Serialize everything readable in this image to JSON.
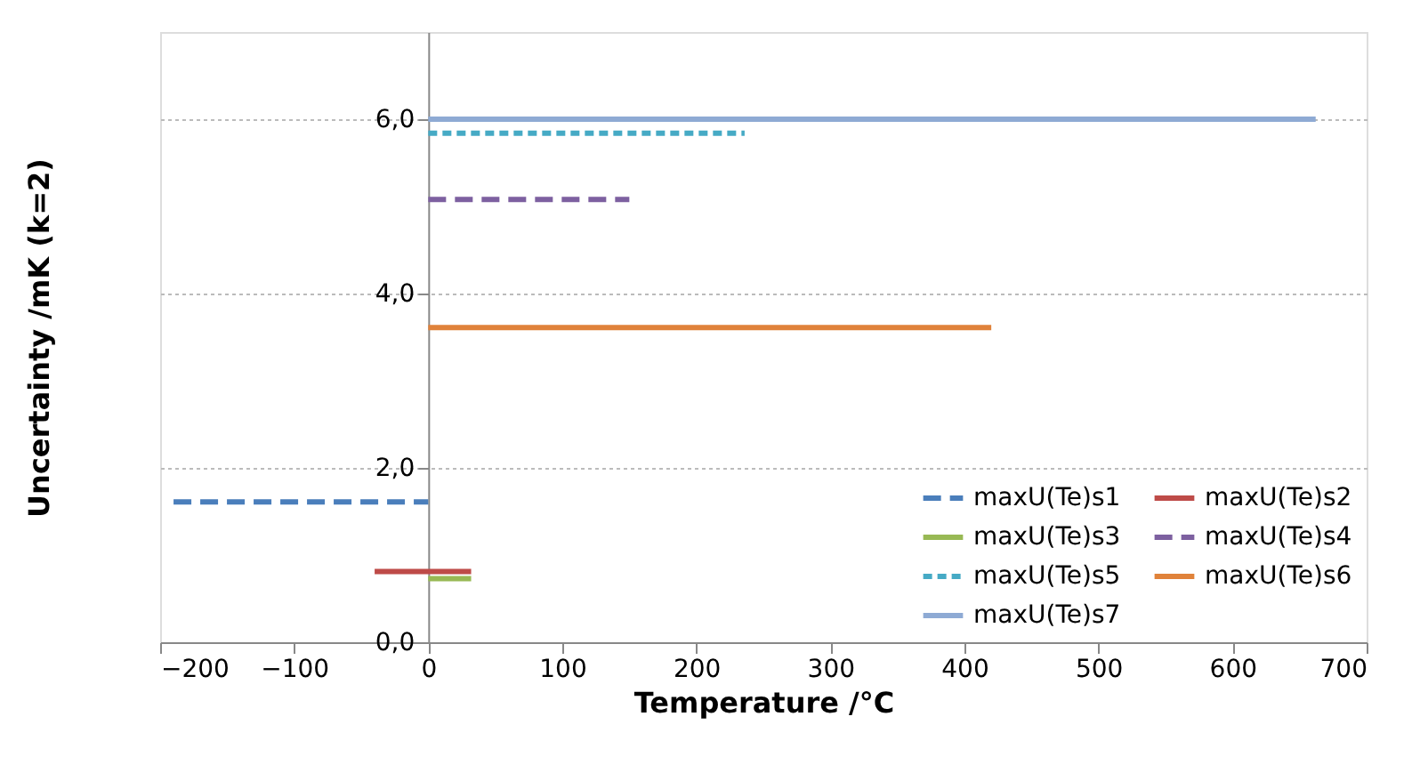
{
  "chart_data": {
    "type": "line",
    "xlabel": "Temperature /°C",
    "ylabel": "Uncertainty /mK (k=2)",
    "xlim": [
      -200,
      700
    ],
    "xticks": [
      -200,
      -100,
      0,
      100,
      200,
      300,
      400,
      500,
      600,
      700
    ],
    "ylim": [
      0,
      7
    ],
    "yticks": [
      {
        "value": 0,
        "label": "0,0"
      },
      {
        "value": 2,
        "label": "2,0"
      },
      {
        "value": 4,
        "label": "4,0"
      },
      {
        "value": 6,
        "label": "6,0"
      }
    ],
    "grid": "y",
    "legend": "bottom right",
    "marker": "none",
    "series": [
      {
        "name": "maxU(Te)s1",
        "color": "#4a7ebb",
        "line_style": "dashed",
        "x": [
          -190,
          0
        ],
        "values": [
          1.61,
          1.61
        ]
      },
      {
        "name": "maxU(Te)s2",
        "color": "#be4b48",
        "line_style": "solid",
        "x": [
          -40,
          32
        ],
        "values": [
          0.81,
          0.81
        ]
      },
      {
        "name": "maxU(Te)s3",
        "color": "#98b954",
        "line_style": "solid",
        "x": [
          0,
          32
        ],
        "values": [
          0.73,
          0.73
        ]
      },
      {
        "name": "maxU(Te)s4",
        "color": "#7d60a0",
        "line_style": "dashed",
        "x": [
          0,
          150
        ],
        "values": [
          5.08,
          5.08
        ]
      },
      {
        "name": "maxU(Te)s5",
        "color": "#46aac5",
        "line_style": "dotted",
        "x": [
          0,
          236
        ],
        "values": [
          5.84,
          5.84
        ]
      },
      {
        "name": "maxU(Te)s6",
        "color": "#e0823a",
        "line_style": "solid",
        "x": [
          0,
          420
        ],
        "values": [
          3.61,
          3.61
        ]
      },
      {
        "name": "maxU(Te)s7",
        "color": "#8eaad4",
        "line_style": "solid",
        "x": [
          0,
          662
        ],
        "values": [
          6.0,
          6.0
        ]
      }
    ]
  }
}
